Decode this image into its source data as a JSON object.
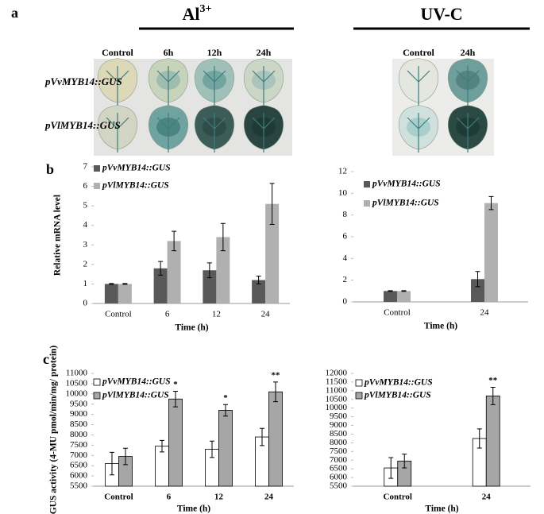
{
  "panels": {
    "a": "a",
    "b": "b",
    "c": "c",
    "treatments": [
      {
        "title": "Al",
        "superscript": "3+"
      },
      {
        "title": "UV-C"
      }
    ],
    "al_columns": [
      "Control",
      "6h",
      "12h",
      "24h"
    ],
    "uv_columns": [
      "Control",
      "24h"
    ],
    "rows": [
      "pVvMYB14::GUS",
      "pVlMYB14::GUS"
    ]
  },
  "chart_data": [
    {
      "type": "bar",
      "ylabel": "Relative mRNA level",
      "xlabel": "Time (h)",
      "categories": [
        "Control",
        "6",
        "12",
        "24"
      ],
      "ylim": [
        0,
        7
      ],
      "yticks": [
        0,
        1,
        2,
        3,
        4,
        5,
        6,
        7
      ],
      "series": [
        {
          "name": "pVvMYB14::GUS",
          "color": "#595959",
          "values": [
            1.0,
            1.8,
            1.7,
            1.2
          ],
          "errors": [
            0.02,
            0.35,
            0.38,
            0.2
          ]
        },
        {
          "name": "pVlMYB14::GUS",
          "color": "#b0b0b0",
          "values": [
            1.0,
            3.2,
            3.4,
            5.1
          ],
          "errors": [
            0.02,
            0.5,
            0.7,
            1.05
          ]
        }
      ]
    },
    {
      "type": "bar",
      "xlabel": "Time (h)",
      "categories": [
        "Control",
        "24"
      ],
      "ylim": [
        0,
        12
      ],
      "yticks": [
        0,
        2,
        4,
        6,
        8,
        10,
        12
      ],
      "series": [
        {
          "name": "pVvMYB14::GUS",
          "color": "#595959",
          "values": [
            1.0,
            2.1
          ],
          "errors": [
            0.03,
            0.7
          ]
        },
        {
          "name": "pVlMYB14::GUS",
          "color": "#b0b0b0",
          "values": [
            1.0,
            9.1
          ],
          "errors": [
            0.03,
            0.6
          ]
        }
      ]
    },
    {
      "type": "bar",
      "ylabel": "GUS activity (4-MU pmol/min/mg/ protein)",
      "xlabel": "Time (h)",
      "categories": [
        "Control",
        "6",
        "12",
        "24"
      ],
      "ylim": [
        5500,
        11000
      ],
      "yticks": [
        5500,
        6000,
        6500,
        7000,
        7500,
        8000,
        8500,
        9000,
        9500,
        10000,
        10500,
        11000
      ],
      "series": [
        {
          "name": "pVvMYB14::GUS",
          "color": "#ffffff",
          "edgecolor": "#000000",
          "values": [
            6600,
            7450,
            7300,
            7900
          ],
          "errors": [
            550,
            280,
            400,
            420
          ]
        },
        {
          "name": "pVlMYB14::GUS",
          "color": "#a6a6a6",
          "edgecolor": "#000000",
          "values": [
            6950,
            9750,
            9200,
            10100
          ],
          "errors": [
            400,
            380,
            280,
            480
          ],
          "annotations": [
            null,
            "*",
            "*",
            "**"
          ]
        }
      ]
    },
    {
      "type": "bar",
      "xlabel": "Time (h)",
      "categories": [
        "Control",
        "24"
      ],
      "ylim": [
        5500,
        12000
      ],
      "yticks": [
        5500,
        6000,
        6500,
        7000,
        7500,
        8000,
        8500,
        9000,
        9500,
        10000,
        10500,
        11000,
        11500,
        12000
      ],
      "series": [
        {
          "name": "pVvMYB14::GUS",
          "color": "#ffffff",
          "edgecolor": "#000000",
          "values": [
            6550,
            8250
          ],
          "errors": [
            600,
            550
          ]
        },
        {
          "name": "pVlMYB14::GUS",
          "color": "#a6a6a6",
          "edgecolor": "#000000",
          "values": [
            6950,
            10700
          ],
          "errors": [
            400,
            500
          ],
          "annotations": [
            null,
            "**"
          ]
        }
      ]
    }
  ]
}
